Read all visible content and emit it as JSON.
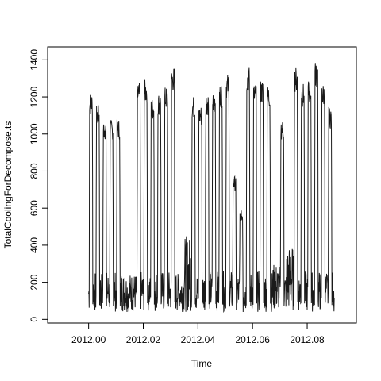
{
  "chart_data": {
    "type": "line",
    "title": "",
    "xlabel": "Time",
    "ylabel": "TotalCoolingForDecompose.ts",
    "xlim": [
      2011.985,
      2012.098
    ],
    "ylim": [
      -20,
      1470
    ],
    "x_ticks": [
      "2012.00",
      "2012.02",
      "2012.04",
      "2012.06",
      "2012.08"
    ],
    "y_ticks": [
      "0",
      "200",
      "400",
      "600",
      "800",
      "1000",
      "1200",
      "1400"
    ],
    "grid": false,
    "legend": "none",
    "series": [
      {
        "color": "#1a1a1a",
        "note_x_units": "year (2012.00 = start of 2012)",
        "x": [],
        "y": []
      }
    ],
    "daily_profile": {
      "x_start": 2012.0,
      "x_end": 2012.09,
      "day_peaks": [
        1250,
        1180,
        1100,
        1100,
        1100,
        250,
        250,
        1300,
        1320,
        1220,
        1250,
        1280,
        1390,
        250,
        450,
        1230,
        1180,
        1250,
        1260,
        1300,
        1350,
        790,
        600,
        1390,
        1300,
        1320,
        1290,
        300,
        1100,
        400,
        1390,
        1300,
        1320,
        1420,
        1300,
        1170
      ]
    }
  }
}
